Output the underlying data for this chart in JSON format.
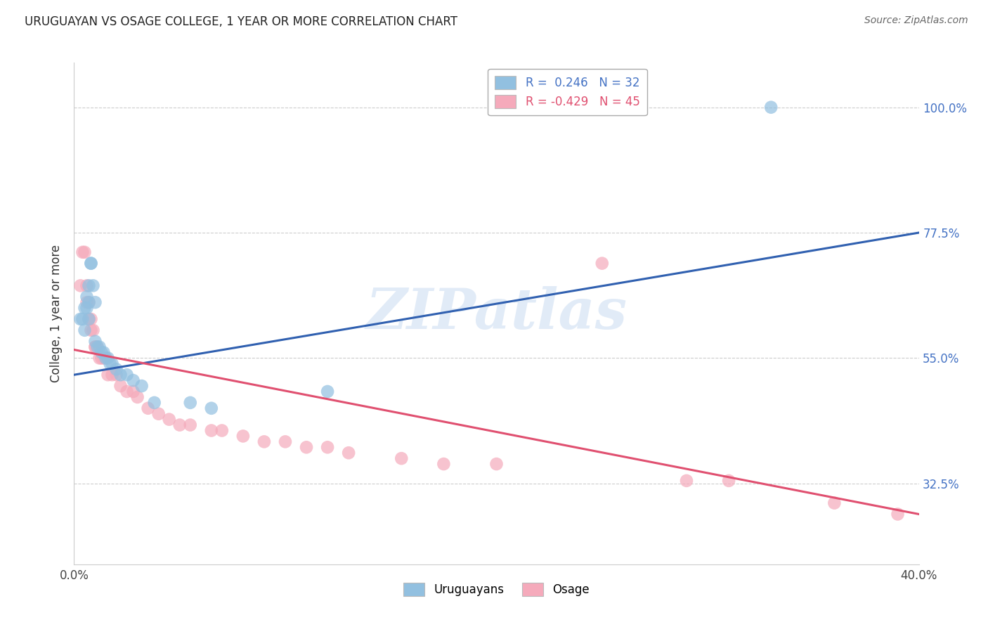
{
  "title": "URUGUAYAN VS OSAGE COLLEGE, 1 YEAR OR MORE CORRELATION CHART",
  "source": "Source: ZipAtlas.com",
  "ylabel": "College, 1 year or more",
  "y_ticks_pct": [
    32.5,
    55.0,
    77.5,
    100.0
  ],
  "xlim": [
    0.0,
    0.4
  ],
  "ylim": [
    0.18,
    1.08
  ],
  "watermark_text": "ZIPatlas",
  "legend_blue_r": "0.246",
  "legend_blue_n": "32",
  "legend_pink_r": "-0.429",
  "legend_pink_n": "45",
  "legend_label_blue": "Uruguayans",
  "legend_label_pink": "Osage",
  "blue_fill": "#92c0e0",
  "pink_fill": "#f5aabb",
  "blue_line_color": "#3060b0",
  "pink_line_color": "#e05070",
  "scatter_size": 180,
  "blue_scatter_alpha": 0.7,
  "pink_scatter_alpha": 0.7,
  "blue_points": [
    [
      0.003,
      0.62
    ],
    [
      0.004,
      0.62
    ],
    [
      0.005,
      0.64
    ],
    [
      0.005,
      0.6
    ],
    [
      0.006,
      0.66
    ],
    [
      0.006,
      0.64
    ],
    [
      0.007,
      0.68
    ],
    [
      0.007,
      0.65
    ],
    [
      0.007,
      0.62
    ],
    [
      0.008,
      0.72
    ],
    [
      0.008,
      0.72
    ],
    [
      0.009,
      0.68
    ],
    [
      0.01,
      0.65
    ],
    [
      0.01,
      0.58
    ],
    [
      0.011,
      0.57
    ],
    [
      0.012,
      0.57
    ],
    [
      0.013,
      0.56
    ],
    [
      0.014,
      0.56
    ],
    [
      0.015,
      0.55
    ],
    [
      0.016,
      0.55
    ],
    [
      0.017,
      0.54
    ],
    [
      0.018,
      0.54
    ],
    [
      0.02,
      0.53
    ],
    [
      0.022,
      0.52
    ],
    [
      0.025,
      0.52
    ],
    [
      0.028,
      0.51
    ],
    [
      0.032,
      0.5
    ],
    [
      0.038,
      0.47
    ],
    [
      0.055,
      0.47
    ],
    [
      0.065,
      0.46
    ],
    [
      0.12,
      0.49
    ],
    [
      0.33,
      1.0
    ]
  ],
  "pink_points": [
    [
      0.003,
      0.68
    ],
    [
      0.004,
      0.74
    ],
    [
      0.005,
      0.74
    ],
    [
      0.006,
      0.68
    ],
    [
      0.006,
      0.65
    ],
    [
      0.007,
      0.65
    ],
    [
      0.007,
      0.62
    ],
    [
      0.008,
      0.62
    ],
    [
      0.008,
      0.6
    ],
    [
      0.009,
      0.6
    ],
    [
      0.01,
      0.57
    ],
    [
      0.01,
      0.57
    ],
    [
      0.011,
      0.57
    ],
    [
      0.012,
      0.55
    ],
    [
      0.013,
      0.55
    ],
    [
      0.014,
      0.55
    ],
    [
      0.015,
      0.55
    ],
    [
      0.016,
      0.52
    ],
    [
      0.018,
      0.52
    ],
    [
      0.02,
      0.52
    ],
    [
      0.022,
      0.5
    ],
    [
      0.025,
      0.49
    ],
    [
      0.028,
      0.49
    ],
    [
      0.03,
      0.48
    ],
    [
      0.035,
      0.46
    ],
    [
      0.04,
      0.45
    ],
    [
      0.045,
      0.44
    ],
    [
      0.05,
      0.43
    ],
    [
      0.055,
      0.43
    ],
    [
      0.065,
      0.42
    ],
    [
      0.07,
      0.42
    ],
    [
      0.08,
      0.41
    ],
    [
      0.09,
      0.4
    ],
    [
      0.1,
      0.4
    ],
    [
      0.11,
      0.39
    ],
    [
      0.12,
      0.39
    ],
    [
      0.13,
      0.38
    ],
    [
      0.155,
      0.37
    ],
    [
      0.175,
      0.36
    ],
    [
      0.2,
      0.36
    ],
    [
      0.25,
      0.72
    ],
    [
      0.29,
      0.33
    ],
    [
      0.31,
      0.33
    ],
    [
      0.36,
      0.29
    ],
    [
      0.39,
      0.27
    ]
  ],
  "blue_line_x": [
    0.0,
    0.4
  ],
  "blue_line_y": [
    0.52,
    0.775
  ],
  "pink_line_x": [
    0.0,
    0.4
  ],
  "pink_line_y": [
    0.565,
    0.27
  ]
}
